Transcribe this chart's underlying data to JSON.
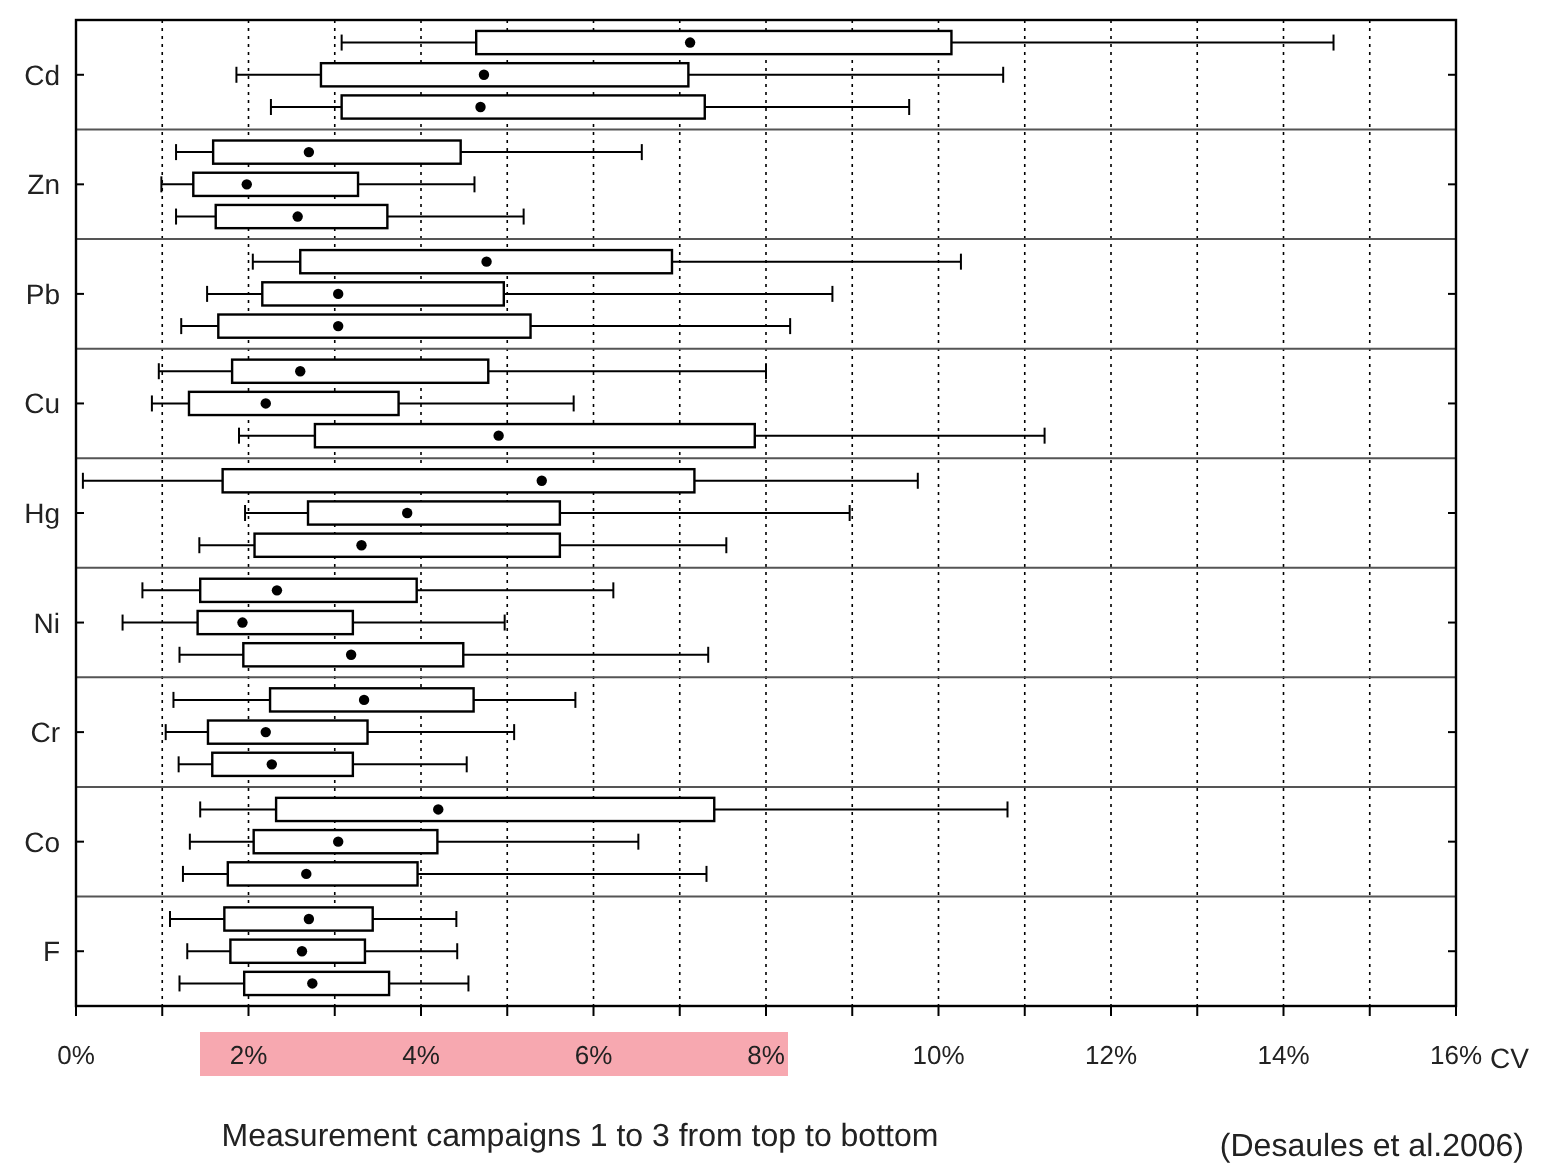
{
  "chart_data": {
    "type": "box",
    "orientation": "horizontal",
    "categories": [
      "Cd",
      "Zn",
      "Pb",
      "Cu",
      "Hg",
      "Ni",
      "Cr",
      "Co",
      "F"
    ],
    "xlabel": "CV",
    "grid": "x",
    "line_style": "dotted",
    "xlim": [
      0,
      16
    ],
    "xticks": [
      {
        "value": 0,
        "label": "0%"
      },
      {
        "value": 1,
        "label": null
      },
      {
        "value": 2,
        "label": "2%"
      },
      {
        "value": 3,
        "label": null
      },
      {
        "value": 4,
        "label": "4%"
      },
      {
        "value": 5,
        "label": null
      },
      {
        "value": 6,
        "label": "6%"
      },
      {
        "value": 7,
        "label": null
      },
      {
        "value": 8,
        "label": "8%"
      },
      {
        "value": 9,
        "label": null
      },
      {
        "value": 10,
        "label": "10%"
      },
      {
        "value": 11,
        "label": null
      },
      {
        "value": 12,
        "label": "12%"
      },
      {
        "value": 13,
        "label": null
      },
      {
        "value": 14,
        "label": "14%"
      },
      {
        "value": 15,
        "label": null
      },
      {
        "value": 16,
        "label": "16%"
      }
    ],
    "annotations": [
      "Measurement campaigns 1 to 3 from top to bottom",
      "(Desaules et al.2006)"
    ],
    "series": [
      {
        "color": "#000000",
        "boxes": [
          {
            "low": 3.08,
            "q1": 4.64,
            "median": 7.12,
            "q3": 10.15,
            "high": 14.58
          },
          {
            "low": 1.16,
            "q1": 1.59,
            "median": 2.7,
            "q3": 4.46,
            "high": 6.56
          },
          {
            "low": 2.05,
            "q1": 2.6,
            "median": 4.76,
            "q3": 6.91,
            "high": 10.26
          },
          {
            "low": 0.96,
            "q1": 1.81,
            "median": 2.6,
            "q3": 4.78,
            "high": 8.0
          },
          {
            "low": 0.08,
            "q1": 1.7,
            "median": 5.4,
            "q3": 7.17,
            "high": 9.76
          },
          {
            "low": 0.77,
            "q1": 1.44,
            "median": 2.33,
            "q3": 3.95,
            "high": 6.23
          },
          {
            "low": 1.13,
            "q1": 2.25,
            "median": 3.34,
            "q3": 4.61,
            "high": 5.79
          },
          {
            "low": 1.44,
            "q1": 2.32,
            "median": 4.2,
            "q3": 7.4,
            "high": 10.8
          },
          {
            "low": 1.09,
            "q1": 1.72,
            "median": 2.7,
            "q3": 3.44,
            "high": 4.41
          }
        ]
      },
      {
        "color": "#000000",
        "boxes": [
          {
            "low": 1.86,
            "q1": 2.84,
            "median": 4.73,
            "q3": 7.1,
            "high": 10.75
          },
          {
            "low": 0.99,
            "q1": 1.36,
            "median": 1.98,
            "q3": 3.27,
            "high": 4.62
          },
          {
            "low": 1.52,
            "q1": 2.16,
            "median": 3.04,
            "q3": 4.96,
            "high": 8.77
          },
          {
            "low": 0.88,
            "q1": 1.31,
            "median": 2.2,
            "q3": 3.74,
            "high": 5.77
          },
          {
            "low": 1.96,
            "q1": 2.69,
            "median": 3.84,
            "q3": 5.61,
            "high": 8.97
          },
          {
            "low": 0.54,
            "q1": 1.41,
            "median": 1.93,
            "q3": 3.21,
            "high": 4.97
          },
          {
            "low": 1.04,
            "q1": 1.53,
            "median": 2.2,
            "q3": 3.38,
            "high": 5.08
          },
          {
            "low": 1.32,
            "q1": 2.06,
            "median": 3.04,
            "q3": 4.19,
            "high": 6.52
          },
          {
            "low": 1.29,
            "q1": 1.79,
            "median": 2.62,
            "q3": 3.35,
            "high": 4.42
          }
        ]
      },
      {
        "color": "#000000",
        "boxes": [
          {
            "low": 2.26,
            "q1": 3.08,
            "median": 4.69,
            "q3": 7.29,
            "high": 9.66
          },
          {
            "low": 1.16,
            "q1": 1.62,
            "median": 2.57,
            "q3": 3.61,
            "high": 5.19
          },
          {
            "low": 1.22,
            "q1": 1.65,
            "median": 3.04,
            "q3": 5.27,
            "high": 8.28
          },
          {
            "low": 1.89,
            "q1": 2.77,
            "median": 4.9,
            "q3": 7.87,
            "high": 11.23
          },
          {
            "low": 1.43,
            "q1": 2.07,
            "median": 3.31,
            "q3": 5.61,
            "high": 7.54
          },
          {
            "low": 1.2,
            "q1": 1.94,
            "median": 3.19,
            "q3": 4.49,
            "high": 7.33
          },
          {
            "low": 1.19,
            "q1": 1.58,
            "median": 2.27,
            "q3": 3.21,
            "high": 4.53
          },
          {
            "low": 1.24,
            "q1": 1.76,
            "median": 2.67,
            "q3": 3.96,
            "high": 7.31
          },
          {
            "low": 1.2,
            "q1": 1.95,
            "median": 2.74,
            "q3": 3.63,
            "high": 4.55
          }
        ]
      }
    ]
  }
}
